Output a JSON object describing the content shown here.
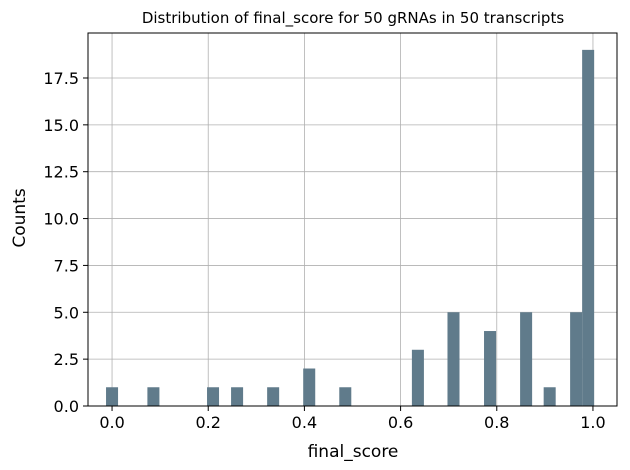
{
  "chart_data": {
    "type": "bar",
    "title": "Distribution of final_score for 50 gRNAs in 50 transcripts",
    "xlabel": "final_score",
    "ylabel": "Counts",
    "xlim": [
      -0.05,
      1.05
    ],
    "ylim": [
      0,
      19.9
    ],
    "xticks": [
      0.0,
      0.2,
      0.4,
      0.6,
      0.8,
      1.0
    ],
    "xtick_labels": [
      "0.0",
      "0.2",
      "0.4",
      "0.6",
      "0.8",
      "1.0"
    ],
    "yticks": [
      0,
      2.5,
      5,
      7.5,
      10,
      12.5,
      15,
      17.5
    ],
    "ytick_labels": [
      "0.0",
      "2.5",
      "5.0",
      "7.5",
      "10.0",
      "12.5",
      "15.0",
      "17.5"
    ],
    "grid": true,
    "bin_width": 0.025,
    "color": "#607B8B",
    "bars": [
      {
        "x": 0.0,
        "count": 1
      },
      {
        "x": 0.086,
        "count": 1
      },
      {
        "x": 0.21,
        "count": 1
      },
      {
        "x": 0.26,
        "count": 1
      },
      {
        "x": 0.335,
        "count": 1
      },
      {
        "x": 0.41,
        "count": 2
      },
      {
        "x": 0.485,
        "count": 1
      },
      {
        "x": 0.636,
        "count": 3
      },
      {
        "x": 0.71,
        "count": 5
      },
      {
        "x": 0.786,
        "count": 4
      },
      {
        "x": 0.861,
        "count": 5
      },
      {
        "x": 0.91,
        "count": 1
      },
      {
        "x": 0.965,
        "count": 5
      },
      {
        "x": 0.99,
        "count": 19
      }
    ]
  }
}
